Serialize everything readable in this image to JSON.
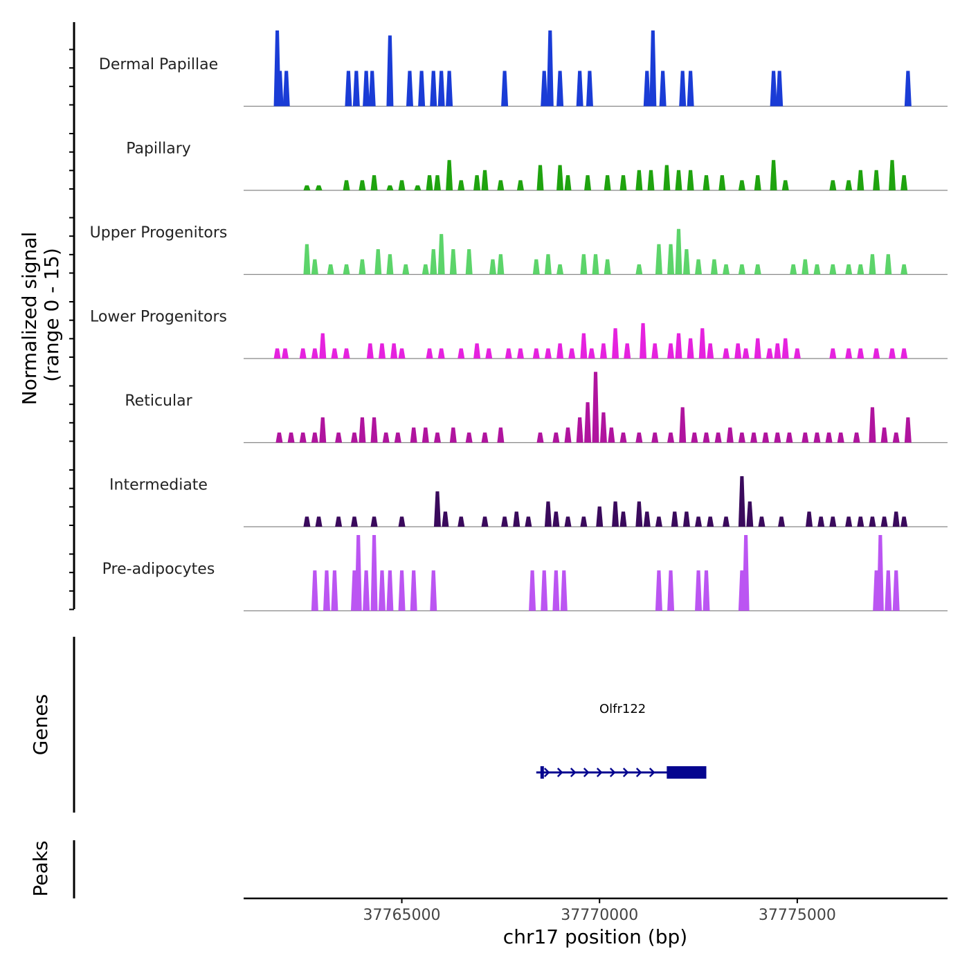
{
  "chart_data": {
    "type": "area",
    "title": "",
    "ylabel_line1": "Normalized signal",
    "ylabel_line2": "(range 0 - 15)",
    "ylim": [
      0,
      15
    ],
    "xlabel": "chr17 position (bp)",
    "xlim": [
      37761000,
      37778800
    ],
    "x_ticks": [
      {
        "value": 37765000,
        "label": "37765000"
      },
      {
        "value": 37770000,
        "label": "37770000"
      },
      {
        "value": 37775000,
        "label": "37775000"
      }
    ],
    "series": [
      {
        "name": "Dermal Papillae",
        "color": "#1a3cd6",
        "data": [
          [
            37761850,
            15
          ],
          [
            37761920,
            7
          ],
          [
            37762080,
            7
          ],
          [
            37763650,
            7
          ],
          [
            37763850,
            7
          ],
          [
            37764100,
            7
          ],
          [
            37764250,
            7
          ],
          [
            37764700,
            14
          ],
          [
            37765200,
            7
          ],
          [
            37765500,
            7
          ],
          [
            37765800,
            7
          ],
          [
            37766000,
            7
          ],
          [
            37766200,
            7
          ],
          [
            37767600,
            7
          ],
          [
            37768600,
            7
          ],
          [
            37768750,
            15
          ],
          [
            37769000,
            7
          ],
          [
            37769500,
            7
          ],
          [
            37769750,
            7
          ],
          [
            37771200,
            7
          ],
          [
            37771350,
            15
          ],
          [
            37771600,
            7
          ],
          [
            37772100,
            7
          ],
          [
            37772300,
            7
          ],
          [
            37774400,
            7
          ],
          [
            37774550,
            7
          ],
          [
            37777800,
            7
          ]
        ]
      },
      {
        "name": "Papillary",
        "color": "#1fa30f",
        "data": [
          [
            37762600,
            1
          ],
          [
            37762900,
            1
          ],
          [
            37763600,
            2
          ],
          [
            37764000,
            2
          ],
          [
            37764300,
            3
          ],
          [
            37764700,
            1
          ],
          [
            37765000,
            2
          ],
          [
            37765400,
            1
          ],
          [
            37765700,
            3
          ],
          [
            37765900,
            3
          ],
          [
            37766200,
            6
          ],
          [
            37766500,
            2
          ],
          [
            37766900,
            3
          ],
          [
            37767100,
            4
          ],
          [
            37767500,
            2
          ],
          [
            37768000,
            2
          ],
          [
            37768500,
            5
          ],
          [
            37769000,
            5
          ],
          [
            37769200,
            3
          ],
          [
            37769700,
            3
          ],
          [
            37770200,
            3
          ],
          [
            37770600,
            3
          ],
          [
            37771000,
            4
          ],
          [
            37771300,
            4
          ],
          [
            37771700,
            5
          ],
          [
            37772000,
            4
          ],
          [
            37772300,
            4
          ],
          [
            37772700,
            3
          ],
          [
            37773100,
            3
          ],
          [
            37773600,
            2
          ],
          [
            37774000,
            3
          ],
          [
            37774400,
            6
          ],
          [
            37774700,
            2
          ],
          [
            37775900,
            2
          ],
          [
            37776300,
            2
          ],
          [
            37776600,
            4
          ],
          [
            37777000,
            4
          ],
          [
            37777400,
            6
          ],
          [
            37777700,
            3
          ]
        ]
      },
      {
        "name": "Upper Progenitors",
        "color": "#5cd46a",
        "data": [
          [
            37762600,
            6
          ],
          [
            37762800,
            3
          ],
          [
            37763200,
            2
          ],
          [
            37763600,
            2
          ],
          [
            37764000,
            3
          ],
          [
            37764400,
            5
          ],
          [
            37764700,
            4
          ],
          [
            37765100,
            2
          ],
          [
            37765600,
            2
          ],
          [
            37765800,
            5
          ],
          [
            37766000,
            8
          ],
          [
            37766300,
            5
          ],
          [
            37766700,
            5
          ],
          [
            37767300,
            3
          ],
          [
            37767500,
            4
          ],
          [
            37768400,
            3
          ],
          [
            37768700,
            4
          ],
          [
            37769000,
            2
          ],
          [
            37769600,
            4
          ],
          [
            37769900,
            4
          ],
          [
            37770200,
            3
          ],
          [
            37771000,
            2
          ],
          [
            37771500,
            6
          ],
          [
            37771800,
            6
          ],
          [
            37772000,
            9
          ],
          [
            37772200,
            5
          ],
          [
            37772500,
            3
          ],
          [
            37772900,
            3
          ],
          [
            37773200,
            2
          ],
          [
            37773600,
            2
          ],
          [
            37774000,
            2
          ],
          [
            37774900,
            2
          ],
          [
            37775200,
            3
          ],
          [
            37775500,
            2
          ],
          [
            37775900,
            2
          ],
          [
            37776300,
            2
          ],
          [
            37776600,
            2
          ],
          [
            37776900,
            4
          ],
          [
            37777300,
            4
          ],
          [
            37777700,
            2
          ]
        ]
      },
      {
        "name": "Lower Progenitors",
        "color": "#e522de",
        "data": [
          [
            37761850,
            2
          ],
          [
            37762050,
            2
          ],
          [
            37762500,
            2
          ],
          [
            37762800,
            2
          ],
          [
            37763000,
            5
          ],
          [
            37763300,
            2
          ],
          [
            37763600,
            2
          ],
          [
            37764200,
            3
          ],
          [
            37764500,
            3
          ],
          [
            37764800,
            3
          ],
          [
            37765000,
            2
          ],
          [
            37765700,
            2
          ],
          [
            37766000,
            2
          ],
          [
            37766500,
            2
          ],
          [
            37766900,
            3
          ],
          [
            37767200,
            2
          ],
          [
            37767700,
            2
          ],
          [
            37768000,
            2
          ],
          [
            37768400,
            2
          ],
          [
            37768700,
            2
          ],
          [
            37769000,
            3
          ],
          [
            37769300,
            2
          ],
          [
            37769600,
            5
          ],
          [
            37769800,
            2
          ],
          [
            37770100,
            3
          ],
          [
            37770400,
            6
          ],
          [
            37770700,
            3
          ],
          [
            37771100,
            7
          ],
          [
            37771400,
            3
          ],
          [
            37771800,
            3
          ],
          [
            37772000,
            5
          ],
          [
            37772300,
            4
          ],
          [
            37772600,
            6
          ],
          [
            37772800,
            3
          ],
          [
            37773200,
            2
          ],
          [
            37773500,
            3
          ],
          [
            37773700,
            2
          ],
          [
            37774000,
            4
          ],
          [
            37774300,
            2
          ],
          [
            37774500,
            3
          ],
          [
            37774700,
            4
          ],
          [
            37775000,
            2
          ],
          [
            37775900,
            2
          ],
          [
            37776300,
            2
          ],
          [
            37776600,
            2
          ],
          [
            37777000,
            2
          ],
          [
            37777400,
            2
          ],
          [
            37777700,
            2
          ]
        ]
      },
      {
        "name": "Reticular",
        "color": "#b0149e",
        "data": [
          [
            37761900,
            2
          ],
          [
            37762200,
            2
          ],
          [
            37762500,
            2
          ],
          [
            37762800,
            2
          ],
          [
            37763000,
            5
          ],
          [
            37763400,
            2
          ],
          [
            37763800,
            2
          ],
          [
            37764000,
            5
          ],
          [
            37764300,
            5
          ],
          [
            37764600,
            2
          ],
          [
            37764900,
            2
          ],
          [
            37765300,
            3
          ],
          [
            37765600,
            3
          ],
          [
            37765900,
            2
          ],
          [
            37766300,
            3
          ],
          [
            37766700,
            2
          ],
          [
            37767100,
            2
          ],
          [
            37767500,
            3
          ],
          [
            37768500,
            2
          ],
          [
            37768900,
            2
          ],
          [
            37769200,
            3
          ],
          [
            37769500,
            5
          ],
          [
            37769700,
            8
          ],
          [
            37769900,
            14
          ],
          [
            37770100,
            6
          ],
          [
            37770300,
            3
          ],
          [
            37770600,
            2
          ],
          [
            37771000,
            2
          ],
          [
            37771400,
            2
          ],
          [
            37771800,
            2
          ],
          [
            37772100,
            7
          ],
          [
            37772400,
            2
          ],
          [
            37772700,
            2
          ],
          [
            37773000,
            2
          ],
          [
            37773300,
            3
          ],
          [
            37773600,
            2
          ],
          [
            37773900,
            2
          ],
          [
            37774200,
            2
          ],
          [
            37774500,
            2
          ],
          [
            37774800,
            2
          ],
          [
            37775200,
            2
          ],
          [
            37775500,
            2
          ],
          [
            37775800,
            2
          ],
          [
            37776100,
            2
          ],
          [
            37776500,
            2
          ],
          [
            37776900,
            7
          ],
          [
            37777200,
            3
          ],
          [
            37777500,
            2
          ],
          [
            37777800,
            5
          ]
        ]
      },
      {
        "name": "Intermediate",
        "color": "#3a0a5c",
        "data": [
          [
            37762600,
            2
          ],
          [
            37762900,
            2
          ],
          [
            37763400,
            2
          ],
          [
            37763800,
            2
          ],
          [
            37764300,
            2
          ],
          [
            37765000,
            2
          ],
          [
            37765900,
            7
          ],
          [
            37766100,
            3
          ],
          [
            37766500,
            2
          ],
          [
            37767100,
            2
          ],
          [
            37767600,
            2
          ],
          [
            37767900,
            3
          ],
          [
            37768200,
            2
          ],
          [
            37768700,
            5
          ],
          [
            37768900,
            3
          ],
          [
            37769200,
            2
          ],
          [
            37769600,
            2
          ],
          [
            37770000,
            4
          ],
          [
            37770400,
            5
          ],
          [
            37770600,
            3
          ],
          [
            37771000,
            5
          ],
          [
            37771200,
            3
          ],
          [
            37771500,
            2
          ],
          [
            37771900,
            3
          ],
          [
            37772200,
            3
          ],
          [
            37772500,
            2
          ],
          [
            37772800,
            2
          ],
          [
            37773200,
            2
          ],
          [
            37773600,
            10
          ],
          [
            37773800,
            5
          ],
          [
            37774100,
            2
          ],
          [
            37774600,
            2
          ],
          [
            37775300,
            3
          ],
          [
            37775600,
            2
          ],
          [
            37775900,
            2
          ],
          [
            37776300,
            2
          ],
          [
            37776600,
            2
          ],
          [
            37776900,
            2
          ],
          [
            37777200,
            2
          ],
          [
            37777500,
            3
          ],
          [
            37777700,
            2
          ]
        ]
      },
      {
        "name": "Pre-adipocytes",
        "color": "#bb55f2",
        "data": [
          [
            37762800,
            8
          ],
          [
            37763100,
            8
          ],
          [
            37763300,
            8
          ],
          [
            37763800,
            8
          ],
          [
            37763900,
            15
          ],
          [
            37764100,
            8
          ],
          [
            37764300,
            15
          ],
          [
            37764500,
            8
          ],
          [
            37764700,
            8
          ],
          [
            37765000,
            8
          ],
          [
            37765300,
            8
          ],
          [
            37765800,
            8
          ],
          [
            37768300,
            8
          ],
          [
            37768600,
            8
          ],
          [
            37768900,
            8
          ],
          [
            37769100,
            8
          ],
          [
            37771500,
            8
          ],
          [
            37771800,
            8
          ],
          [
            37772500,
            8
          ],
          [
            37772700,
            8
          ],
          [
            37773600,
            8
          ],
          [
            37773700,
            15
          ],
          [
            37777000,
            8
          ],
          [
            37777100,
            15
          ],
          [
            37777300,
            8
          ],
          [
            37777500,
            8
          ]
        ]
      }
    ],
    "genes": [
      {
        "name": "Olfr122",
        "start": 37768400,
        "end": 37772700,
        "strand": "+",
        "cds_start": 37771700,
        "cds_end": 37772700,
        "color": "#05058f"
      }
    ],
    "gene_panel_label": "Genes",
    "peak_panel_label": "Peaks"
  }
}
